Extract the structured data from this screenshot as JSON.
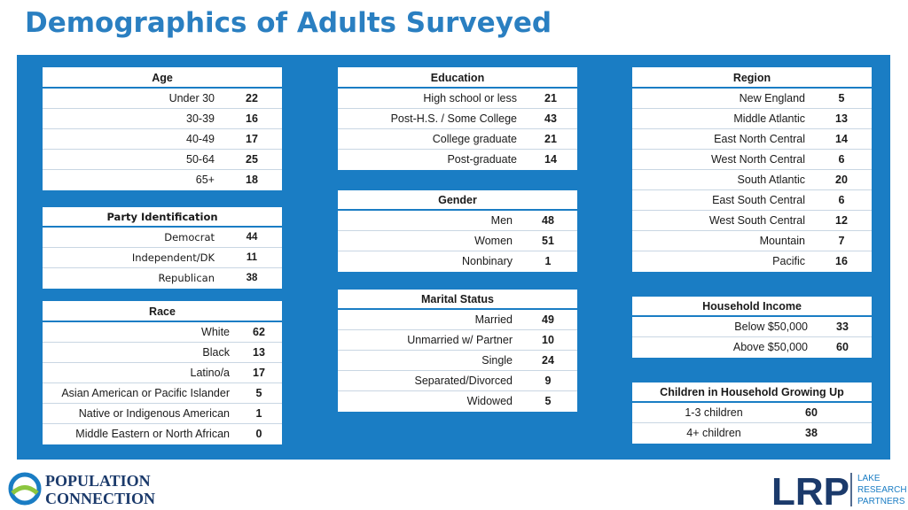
{
  "title": "Demographics of Adults Surveyed",
  "age": {
    "header": "Age",
    "rows": [
      [
        "Under 30",
        "22"
      ],
      [
        "30-39",
        "16"
      ],
      [
        "40-49",
        "17"
      ],
      [
        "50-64",
        "25"
      ],
      [
        "65+",
        "18"
      ]
    ]
  },
  "party": {
    "header": "Party Identification",
    "rows": [
      [
        "Democrat",
        "44"
      ],
      [
        "Independent/DK",
        "11"
      ],
      [
        "Republican",
        "38"
      ]
    ]
  },
  "race": {
    "header": "Race",
    "rows": [
      [
        "White",
        "62"
      ],
      [
        "Black",
        "13"
      ],
      [
        "Latino/a",
        "17"
      ],
      [
        "Asian American or Pacific Islander",
        "5"
      ],
      [
        "Native or Indigenous American",
        "1"
      ],
      [
        "Middle Eastern or North African",
        "0"
      ]
    ]
  },
  "education": {
    "header": "Education",
    "rows": [
      [
        "High school or less",
        "21"
      ],
      [
        "Post-H.S. / Some College",
        "43"
      ],
      [
        "College graduate",
        "21"
      ],
      [
        "Post-graduate",
        "14"
      ]
    ]
  },
  "gender": {
    "header": "Gender",
    "rows": [
      [
        "Men",
        "48"
      ],
      [
        "Women",
        "51"
      ],
      [
        "Nonbinary",
        "1"
      ]
    ]
  },
  "marital": {
    "header": "Marital Status",
    "rows": [
      [
        "Married",
        "49"
      ],
      [
        "Unmarried w/ Partner",
        "10"
      ],
      [
        "Single",
        "24"
      ],
      [
        "Separated/Divorced",
        "9"
      ],
      [
        "Widowed",
        "5"
      ]
    ]
  },
  "region": {
    "header": "Region",
    "rows": [
      [
        "New England",
        "5"
      ],
      [
        "Middle Atlantic",
        "13"
      ],
      [
        "East North Central",
        "14"
      ],
      [
        "West North Central",
        "6"
      ],
      [
        "South Atlantic",
        "20"
      ],
      [
        "East South Central",
        "6"
      ],
      [
        "West South Central",
        "12"
      ],
      [
        "Mountain",
        "7"
      ],
      [
        "Pacific",
        "16"
      ]
    ]
  },
  "income": {
    "header": "Household Income",
    "rows": [
      [
        "Below $50,000",
        "33"
      ],
      [
        "Above $50,000",
        "60"
      ]
    ]
  },
  "children": {
    "header": "Children in Household Growing Up",
    "rows": [
      [
        "1-3 children",
        "60"
      ],
      [
        "4+ children",
        "38"
      ]
    ]
  },
  "logos": {
    "pc_line1": "POPULATION",
    "pc_line2": "CONNECTION",
    "lrp_mark": "LRP",
    "lrp_word1": "LAKE",
    "lrp_word2": "RESEARCH",
    "lrp_word3": "PARTNERS"
  },
  "colors": {
    "accent": "#1a7dc4",
    "title": "#2a7fc1",
    "navy": "#1b3a6b"
  }
}
